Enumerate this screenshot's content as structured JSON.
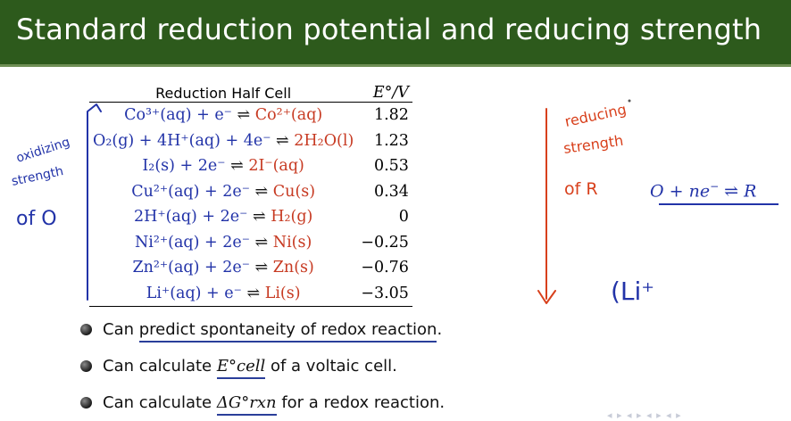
{
  "slide": {
    "title": "Standard reduction potential and reducing strength"
  },
  "table": {
    "col_halfcell": "Reduction Half Cell",
    "col_potential": "E°/V",
    "rows": [
      {
        "ox": "Co³⁺(aq) + e⁻",
        "arrow": "⇌",
        "red": "Co²⁺(aq)",
        "e": "1.82"
      },
      {
        "ox": "O₂(g) + 4H⁺(aq) + 4e⁻",
        "arrow": "⇌",
        "red": "2H₂O(l)",
        "e": "1.23"
      },
      {
        "ox": "I₂(s) + 2e⁻",
        "arrow": "⇌",
        "red": "2I⁻(aq)",
        "e": "0.53"
      },
      {
        "ox": "Cu²⁺(aq) + 2e⁻",
        "arrow": "⇌",
        "red": "Cu(s)",
        "e": "0.34"
      },
      {
        "ox": "2H⁺(aq) + 2e⁻",
        "arrow": "⇌",
        "red": "H₂(g)",
        "e": "0"
      },
      {
        "ox": "Ni²⁺(aq) + 2e⁻",
        "arrow": "⇌",
        "red": "Ni(s)",
        "e": "−0.25"
      },
      {
        "ox": "Zn²⁺(aq) + 2e⁻",
        "arrow": "⇌",
        "red": "Zn(s)",
        "e": "−0.76"
      },
      {
        "ox": "Li⁺(aq) + e⁻",
        "arrow": "⇌",
        "red": "Li(s)",
        "e": "−3.05"
      }
    ]
  },
  "bullets": {
    "b1_pre": "Can ",
    "b1_underlined": "predict spontaneity of redox reaction",
    "b1_post": ".",
    "b2_pre": "Can calculate ",
    "b2_sym": "E°cell",
    "b2_post": " of a voltaic cell.",
    "b3_pre": "Can calculate ",
    "b3_sym": "ΔG°rxn",
    "b3_post": " for a redox reaction."
  },
  "equation": {
    "lhs": "O + ne",
    "sup": "−",
    "rhs": " ⇌ R"
  },
  "handwriting": {
    "left_annotation": "oxidizing strength of O",
    "right_annotation": "reducing strength of R",
    "partial": "(Li⁺"
  },
  "colors": {
    "title_bar": "#2d5a1c",
    "oxidized_species": "#2233a8",
    "reduced_species": "#c73a22",
    "left_ink": "#2233a8",
    "right_ink": "#d8401c"
  }
}
